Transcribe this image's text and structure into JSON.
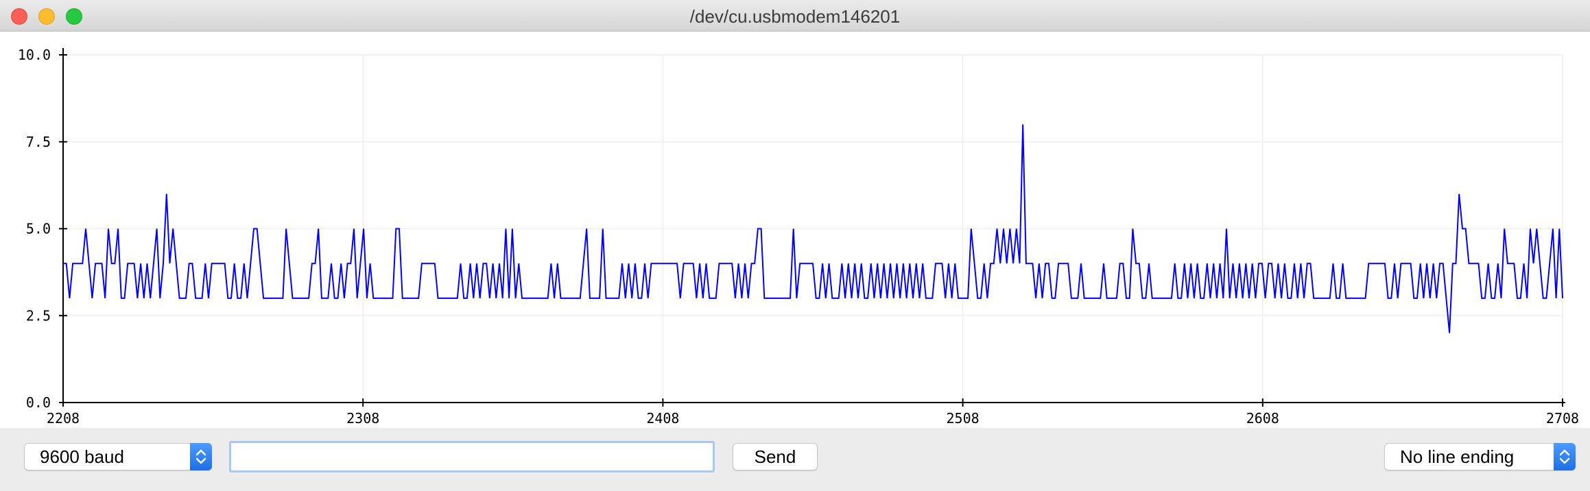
{
  "window": {
    "title": "/dev/cu.usbmodem146201"
  },
  "controls": {
    "baud_label": "9600 baud",
    "input_value": "",
    "send_label": "Send",
    "line_ending_label": "No line ending"
  },
  "colors": {
    "series": "#0000ff",
    "grid": "#eeeeee",
    "axis": "#000000"
  },
  "chart_data": {
    "type": "line",
    "title": "",
    "xlabel": "",
    "ylabel": "",
    "xlim": [
      2208,
      2708
    ],
    "ylim": [
      0,
      10
    ],
    "x_ticks": [
      "2208",
      "2308",
      "2408",
      "2508",
      "2608",
      "2708"
    ],
    "y_ticks": [
      "0.0",
      "2.5",
      "5.0",
      "7.5",
      "10.0"
    ],
    "grid": true,
    "x_start": 2208,
    "series": [
      {
        "values": [
          4,
          4,
          3,
          4,
          4,
          4,
          4,
          5,
          4,
          3,
          4,
          4,
          4,
          3,
          5,
          4,
          4,
          5,
          3,
          3,
          4,
          4,
          4,
          3,
          4,
          3,
          4,
          3,
          4,
          5,
          3,
          4,
          6,
          4,
          5,
          4,
          3,
          3,
          3,
          4,
          4,
          3,
          3,
          3,
          4,
          3,
          4,
          4,
          4,
          4,
          4,
          3,
          3,
          4,
          3,
          3,
          4,
          3,
          4,
          5,
          5,
          4,
          3,
          3,
          3,
          3,
          3,
          3,
          3,
          5,
          4,
          3,
          3,
          3,
          3,
          3,
          3,
          4,
          4,
          5,
          3,
          3,
          3,
          4,
          3,
          3,
          4,
          3,
          4,
          4,
          5,
          3,
          4,
          5,
          3,
          4,
          3,
          3,
          3,
          3,
          3,
          3,
          3,
          5,
          5,
          3,
          3,
          3,
          3,
          3,
          3,
          4,
          4,
          4,
          4,
          4,
          3,
          3,
          3,
          3,
          3,
          3,
          3,
          4,
          3,
          3,
          4,
          3,
          4,
          3,
          4,
          4,
          3,
          4,
          3,
          4,
          3,
          5,
          3,
          5,
          3,
          4,
          3,
          3,
          3,
          3,
          3,
          3,
          3,
          3,
          3,
          4,
          3,
          4,
          3,
          3,
          3,
          3,
          3,
          3,
          3,
          4,
          5,
          3,
          3,
          3,
          3,
          5,
          3,
          3,
          3,
          3,
          3,
          4,
          3,
          4,
          3,
          4,
          3,
          3,
          4,
          3,
          4,
          4,
          4,
          4,
          4,
          4,
          4,
          4,
          4,
          3,
          4,
          4,
          4,
          4,
          3,
          4,
          3,
          4,
          3,
          3,
          3,
          4,
          4,
          4,
          4,
          4,
          3,
          4,
          3,
          4,
          3,
          4,
          4,
          5,
          5,
          3,
          3,
          3,
          3,
          3,
          3,
          3,
          3,
          3,
          5,
          3,
          4,
          4,
          4,
          4,
          4,
          3,
          3,
          4,
          3,
          4,
          3,
          3,
          3,
          4,
          3,
          4,
          3,
          4,
          3,
          4,
          3,
          3,
          4,
          3,
          4,
          3,
          4,
          3,
          4,
          3,
          4,
          3,
          4,
          3,
          4,
          3,
          4,
          3,
          4,
          3,
          3,
          3,
          4,
          4,
          4,
          3,
          4,
          3,
          4,
          3,
          3,
          3,
          3,
          5,
          4,
          3,
          3,
          4,
          3,
          4,
          4,
          5,
          4,
          5,
          4,
          5,
          4,
          5,
          4,
          8,
          4,
          4,
          4,
          3,
          4,
          3,
          4,
          4,
          3,
          3,
          4,
          4,
          4,
          4,
          3,
          3,
          3,
          4,
          3,
          3,
          3,
          3,
          3,
          3,
          4,
          3,
          3,
          3,
          3,
          4,
          4,
          3,
          3,
          5,
          4,
          4,
          3,
          3,
          4,
          3,
          3,
          3,
          3,
          3,
          3,
          3,
          4,
          3,
          3,
          4,
          3,
          4,
          3,
          4,
          3,
          3,
          4,
          3,
          4,
          3,
          4,
          3,
          5,
          3,
          4,
          3,
          4,
          3,
          4,
          3,
          4,
          3,
          4,
          4,
          3,
          4,
          4,
          3,
          4,
          3,
          4,
          3,
          3,
          4,
          3,
          4,
          3,
          4,
          4,
          3,
          3,
          3,
          3,
          3,
          3,
          4,
          3,
          3,
          4,
          3,
          3,
          3,
          3,
          3,
          3,
          3,
          4,
          4,
          4,
          4,
          4,
          4,
          3,
          3,
          4,
          3,
          4,
          4,
          4,
          4,
          3,
          3,
          4,
          3,
          4,
          3,
          4,
          3,
          4,
          4,
          3,
          2,
          4,
          4,
          6,
          5,
          5,
          4,
          4,
          4,
          4,
          3,
          3,
          4,
          3,
          3,
          4,
          3,
          5,
          4,
          4,
          4,
          3,
          3,
          4,
          3,
          5,
          4,
          5,
          4,
          3,
          3,
          4,
          5,
          3,
          5,
          3
        ]
      }
    ]
  }
}
